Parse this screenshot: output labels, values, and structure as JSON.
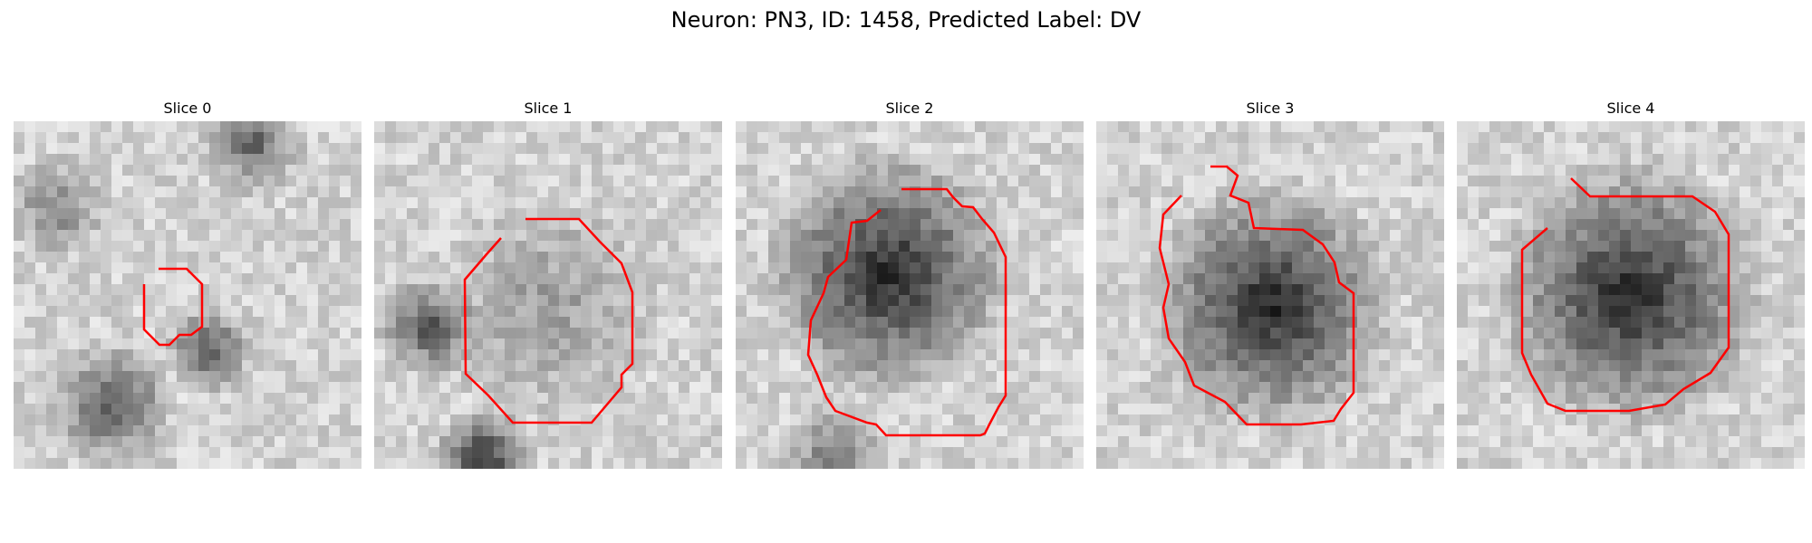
{
  "figure": {
    "title": "Neuron: PN3, ID: 1458, Predicted Label: DV",
    "contour_color": "#ff0000"
  },
  "slices": [
    {
      "title": "Slice 0",
      "type": "scattered"
    },
    {
      "title": "Slice 1",
      "type": "faint-blob"
    },
    {
      "title": "Slice 2",
      "type": "blob"
    },
    {
      "title": "Slice 3",
      "type": "blob"
    },
    {
      "title": "Slice 4",
      "type": "blob"
    }
  ]
}
